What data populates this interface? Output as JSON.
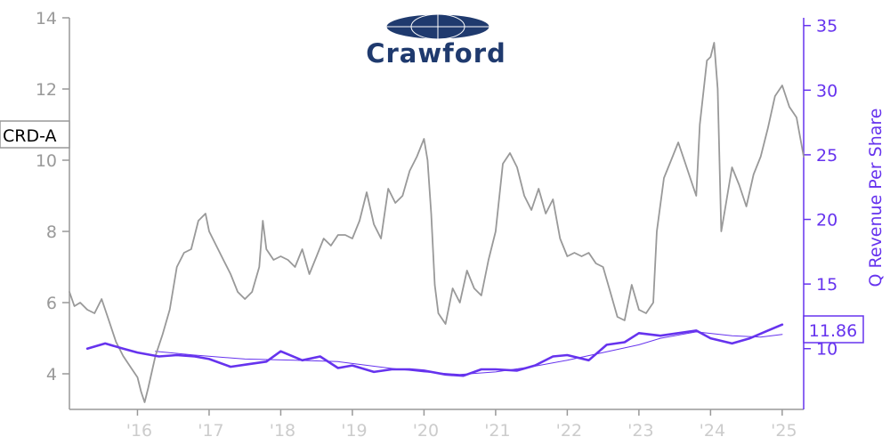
{
  "logo": {
    "text": "Crawford",
    "mark": "globe-icon",
    "color": "#1f3a6e"
  },
  "chart_data": {
    "type": "line",
    "x_tick_labels": [
      "'16",
      "'17",
      "'18",
      "'19",
      "'20",
      "'21",
      "'22",
      "'23",
      "'24",
      "'25"
    ],
    "x_tick_years": [
      2016,
      2017,
      2018,
      2019,
      2020,
      2021,
      2022,
      2023,
      2024,
      2025
    ],
    "xlim": [
      2015.05,
      2025.3
    ],
    "y_left": {
      "ticks": [
        4,
        6,
        8,
        10,
        12,
        14
      ],
      "lim": [
        3,
        14
      ]
    },
    "y_right": {
      "label": "Q Revenue Per Share",
      "ticks": [
        10,
        15,
        20,
        25,
        30,
        35
      ],
      "lim": [
        5.3,
        35.6
      ]
    },
    "grid": false,
    "legend": "none",
    "colors": {
      "price": "#999999",
      "revenue": "#6633ee"
    },
    "price_tag": "CRD-A",
    "revenue_tag": "11.86",
    "series": [
      {
        "name": "CRD-A",
        "axis": "left",
        "color": "#999999",
        "points": [
          [
            2015.05,
            6.3
          ],
          [
            2015.12,
            5.9
          ],
          [
            2015.2,
            6.0
          ],
          [
            2015.3,
            5.8
          ],
          [
            2015.4,
            5.7
          ],
          [
            2015.5,
            6.1
          ],
          [
            2015.6,
            5.5
          ],
          [
            2015.7,
            4.9
          ],
          [
            2015.8,
            4.5
          ],
          [
            2015.9,
            4.2
          ],
          [
            2016.0,
            3.9
          ],
          [
            2016.05,
            3.5
          ],
          [
            2016.1,
            3.2
          ],
          [
            2016.15,
            3.6
          ],
          [
            2016.25,
            4.5
          ],
          [
            2016.35,
            5.1
          ],
          [
            2016.45,
            5.8
          ],
          [
            2016.55,
            7.0
          ],
          [
            2016.65,
            7.4
          ],
          [
            2016.75,
            7.5
          ],
          [
            2016.85,
            8.3
          ],
          [
            2016.95,
            8.5
          ],
          [
            2017.0,
            8.0
          ],
          [
            2017.1,
            7.6
          ],
          [
            2017.2,
            7.2
          ],
          [
            2017.3,
            6.8
          ],
          [
            2017.4,
            6.3
          ],
          [
            2017.5,
            6.1
          ],
          [
            2017.6,
            6.3
          ],
          [
            2017.7,
            7.0
          ],
          [
            2017.75,
            8.3
          ],
          [
            2017.8,
            7.5
          ],
          [
            2017.9,
            7.2
          ],
          [
            2018.0,
            7.3
          ],
          [
            2018.1,
            7.2
          ],
          [
            2018.2,
            7.0
          ],
          [
            2018.3,
            7.5
          ],
          [
            2018.4,
            6.8
          ],
          [
            2018.5,
            7.3
          ],
          [
            2018.6,
            7.8
          ],
          [
            2018.7,
            7.6
          ],
          [
            2018.8,
            7.9
          ],
          [
            2018.9,
            7.9
          ],
          [
            2019.0,
            7.8
          ],
          [
            2019.1,
            8.3
          ],
          [
            2019.2,
            9.1
          ],
          [
            2019.3,
            8.2
          ],
          [
            2019.4,
            7.8
          ],
          [
            2019.5,
            9.2
          ],
          [
            2019.6,
            8.8
          ],
          [
            2019.7,
            9.0
          ],
          [
            2019.8,
            9.7
          ],
          [
            2019.9,
            10.1
          ],
          [
            2020.0,
            10.6
          ],
          [
            2020.05,
            10.0
          ],
          [
            2020.1,
            8.5
          ],
          [
            2020.15,
            6.5
          ],
          [
            2020.2,
            5.7
          ],
          [
            2020.3,
            5.4
          ],
          [
            2020.4,
            6.4
          ],
          [
            2020.5,
            6.0
          ],
          [
            2020.6,
            6.9
          ],
          [
            2020.7,
            6.4
          ],
          [
            2020.8,
            6.2
          ],
          [
            2020.9,
            7.2
          ],
          [
            2021.0,
            8.0
          ],
          [
            2021.1,
            9.9
          ],
          [
            2021.2,
            10.2
          ],
          [
            2021.3,
            9.8
          ],
          [
            2021.4,
            9.0
          ],
          [
            2021.5,
            8.6
          ],
          [
            2021.6,
            9.2
          ],
          [
            2021.7,
            8.5
          ],
          [
            2021.8,
            8.9
          ],
          [
            2021.9,
            7.8
          ],
          [
            2022.0,
            7.3
          ],
          [
            2022.1,
            7.4
          ],
          [
            2022.2,
            7.3
          ],
          [
            2022.3,
            7.4
          ],
          [
            2022.4,
            7.1
          ],
          [
            2022.5,
            7.0
          ],
          [
            2022.6,
            6.3
          ],
          [
            2022.7,
            5.6
          ],
          [
            2022.8,
            5.5
          ],
          [
            2022.9,
            6.5
          ],
          [
            2023.0,
            5.8
          ],
          [
            2023.1,
            5.7
          ],
          [
            2023.2,
            6.0
          ],
          [
            2023.25,
            8.0
          ],
          [
            2023.35,
            9.5
          ],
          [
            2023.45,
            10.0
          ],
          [
            2023.55,
            10.5
          ],
          [
            2023.65,
            9.9
          ],
          [
            2023.75,
            9.3
          ],
          [
            2023.8,
            9.0
          ],
          [
            2023.85,
            11.0
          ],
          [
            2023.95,
            12.8
          ],
          [
            2024.0,
            12.9
          ],
          [
            2024.05,
            13.3
          ],
          [
            2024.1,
            12.0
          ],
          [
            2024.15,
            8.0
          ],
          [
            2024.2,
            8.6
          ],
          [
            2024.3,
            9.8
          ],
          [
            2024.4,
            9.3
          ],
          [
            2024.5,
            8.7
          ],
          [
            2024.6,
            9.6
          ],
          [
            2024.7,
            10.1
          ],
          [
            2024.8,
            10.9
          ],
          [
            2024.9,
            11.8
          ],
          [
            2025.0,
            12.1
          ],
          [
            2025.1,
            11.5
          ],
          [
            2025.2,
            11.2
          ],
          [
            2025.3,
            10.1
          ]
        ]
      },
      {
        "name": "Q Revenue Per Share",
        "axis": "right",
        "color": "#6633ee",
        "points": [
          [
            2015.3,
            10.0
          ],
          [
            2015.55,
            10.4
          ],
          [
            2015.8,
            10.0
          ],
          [
            2016.0,
            9.7
          ],
          [
            2016.3,
            9.4
          ],
          [
            2016.55,
            9.5
          ],
          [
            2016.8,
            9.4
          ],
          [
            2017.0,
            9.2
          ],
          [
            2017.3,
            8.6
          ],
          [
            2017.55,
            8.8
          ],
          [
            2017.8,
            9.0
          ],
          [
            2018.0,
            9.8
          ],
          [
            2018.3,
            9.1
          ],
          [
            2018.55,
            9.4
          ],
          [
            2018.8,
            8.5
          ],
          [
            2019.0,
            8.7
          ],
          [
            2019.3,
            8.2
          ],
          [
            2019.55,
            8.4
          ],
          [
            2019.8,
            8.4
          ],
          [
            2020.0,
            8.3
          ],
          [
            2020.3,
            8.0
          ],
          [
            2020.55,
            7.9
          ],
          [
            2020.8,
            8.4
          ],
          [
            2021.0,
            8.4
          ],
          [
            2021.3,
            8.3
          ],
          [
            2021.55,
            8.7
          ],
          [
            2021.8,
            9.4
          ],
          [
            2022.0,
            9.5
          ],
          [
            2022.3,
            9.1
          ],
          [
            2022.55,
            10.3
          ],
          [
            2022.8,
            10.5
          ],
          [
            2023.0,
            11.2
          ],
          [
            2023.3,
            11.0
          ],
          [
            2023.55,
            11.2
          ],
          [
            2023.8,
            11.4
          ],
          [
            2024.0,
            10.8
          ],
          [
            2024.3,
            10.4
          ],
          [
            2024.55,
            10.8
          ],
          [
            2024.8,
            11.4
          ],
          [
            2025.0,
            11.86
          ]
        ]
      },
      {
        "name": "trend",
        "axis": "right",
        "color": "#6633ee",
        "points": [
          [
            2016.25,
            9.8
          ],
          [
            2016.8,
            9.5
          ],
          [
            2017.5,
            9.2
          ],
          [
            2018.2,
            9.1
          ],
          [
            2018.8,
            9.0
          ],
          [
            2019.5,
            8.5
          ],
          [
            2020.0,
            8.2
          ],
          [
            2020.5,
            8.0
          ],
          [
            2021.0,
            8.2
          ],
          [
            2021.5,
            8.6
          ],
          [
            2022.0,
            9.1
          ],
          [
            2022.5,
            9.7
          ],
          [
            2023.0,
            10.3
          ],
          [
            2023.3,
            10.8
          ],
          [
            2023.8,
            11.3
          ],
          [
            2024.3,
            11.0
          ],
          [
            2024.7,
            10.9
          ],
          [
            2025.0,
            11.1
          ]
        ]
      }
    ]
  }
}
